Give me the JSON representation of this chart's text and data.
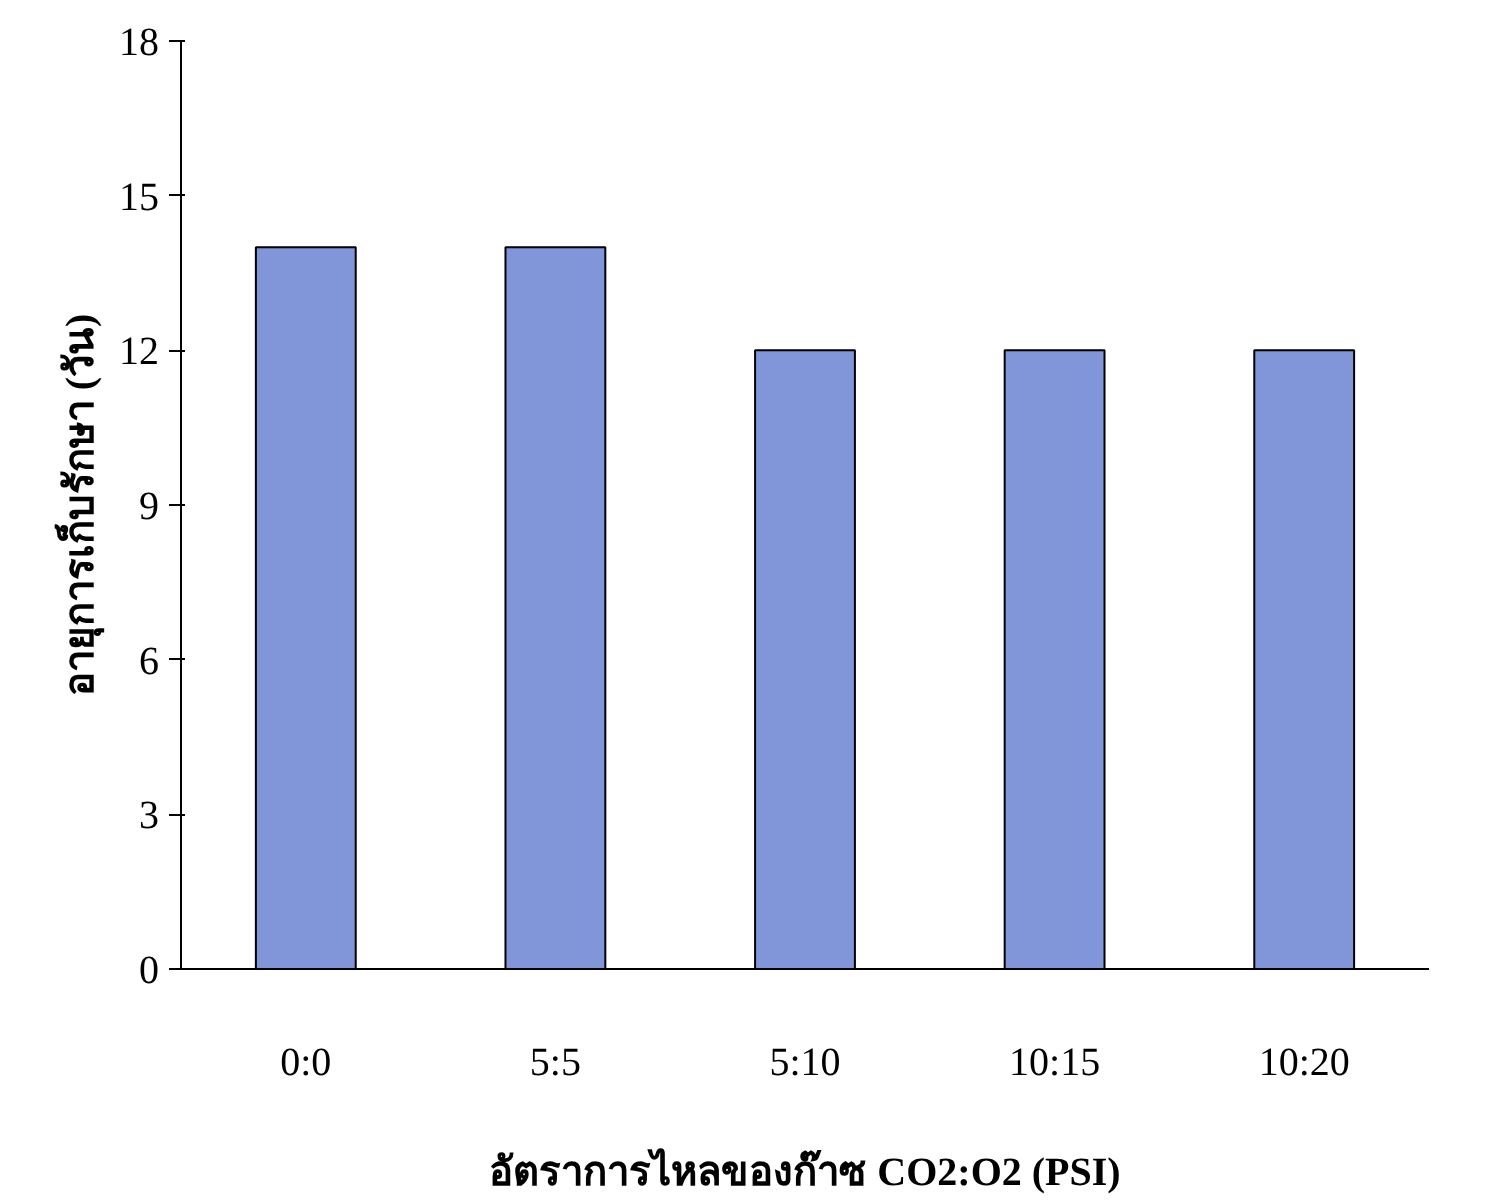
{
  "chart_data": {
    "type": "bar",
    "categories": [
      "0:0",
      "5:5",
      "5:10",
      "10:15",
      "10:20"
    ],
    "values": [
      14,
      14,
      12,
      12,
      12
    ],
    "color": "#8195d9",
    "ylim": [
      0,
      18
    ],
    "yticks": [
      0,
      3,
      6,
      9,
      12,
      15,
      18
    ],
    "ylabel": "อายุการเก็บรักษา (วัน)",
    "xlabel": "อัตราการไหลของก๊าซ CO2:O2 (PSI)",
    "grid": false
  }
}
